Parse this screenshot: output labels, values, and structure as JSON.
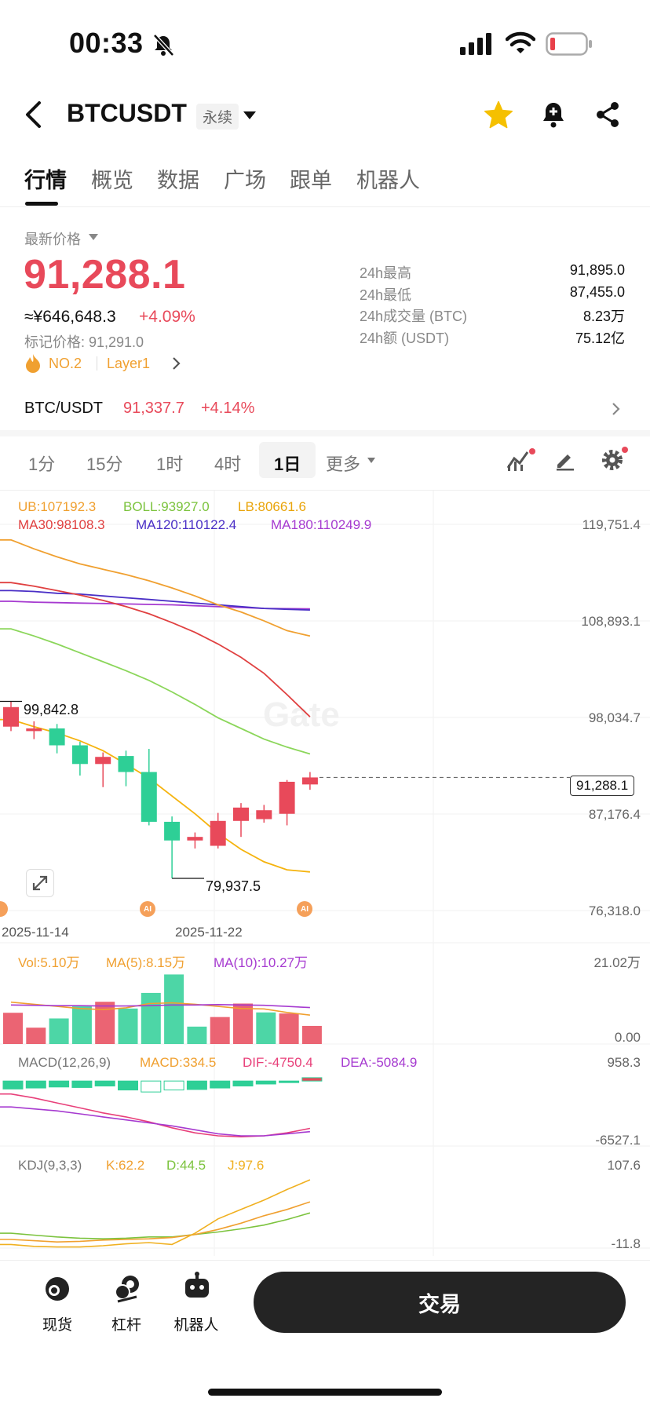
{
  "status_bar": {
    "time": "00:33"
  },
  "header": {
    "symbol": "BTCUSDT",
    "contract_type": "永续"
  },
  "tabs": [
    "行情",
    "概览",
    "数据",
    "广场",
    "跟单",
    "机器人"
  ],
  "price_block": {
    "latest_label": "最新价格",
    "last_price": "91,288.1",
    "cny_equiv": "≈¥646,648.3",
    "change_pct": "+4.09%",
    "mark_price": "标记价格: 91,291.0",
    "rank": "NO.2",
    "sector": "Layer1"
  },
  "stats_24h": [
    {
      "label": "24h最高",
      "value": "91,895.0"
    },
    {
      "label": "24h最低",
      "value": "87,455.0"
    },
    {
      "label": "24h成交量 (BTC)",
      "value": "8.23万"
    },
    {
      "label": "24h额 (USDT)",
      "value": "75.12亿"
    }
  ],
  "spot_ref": {
    "pair": "BTC/USDT",
    "price": "91,337.7",
    "change": "+4.14%"
  },
  "timeframes": [
    "1分",
    "15分",
    "1时",
    "4时",
    "1日",
    "更多"
  ],
  "active_timeframe": "1日",
  "chart_data": {
    "type": "candlestick",
    "main_legend": {
      "ub": "UB:107192.3",
      "boll": "BOLL:93927.0",
      "lb": "LB:80661.6",
      "ma30": "MA30:98108.3",
      "ma120": "MA120:110122.4",
      "ma180": "MA180:110249.9"
    },
    "price_axis": [
      "119,751.4",
      "108,893.1",
      "98,034.7",
      "87,176.4",
      "76,318.0"
    ],
    "price_range": [
      76318.0,
      119751.4
    ],
    "current_price_tag": "91,288.1",
    "annotations": {
      "high": "99,842.8",
      "low": "79,937.5"
    },
    "dates": [
      "2025-11-14",
      "2025-11-22"
    ],
    "candles": [
      {
        "o": 97000,
        "c": 99200,
        "h": 99842.8,
        "l": 96500
      },
      {
        "o": 96500,
        "c": 96800,
        "h": 97600,
        "l": 95600
      },
      {
        "o": 96800,
        "c": 94900,
        "h": 97300,
        "l": 94000
      },
      {
        "o": 94900,
        "c": 92800,
        "h": 95300,
        "l": 91500
      },
      {
        "o": 92800,
        "c": 93600,
        "h": 94100,
        "l": 90200
      },
      {
        "o": 93700,
        "c": 91900,
        "h": 94300,
        "l": 90300
      },
      {
        "o": 91900,
        "c": 86300,
        "h": 94500,
        "l": 85900
      },
      {
        "o": 86300,
        "c": 84200,
        "h": 86900,
        "l": 79937.5
      },
      {
        "o": 84200,
        "c": 84600,
        "h": 85100,
        "l": 83300
      },
      {
        "o": 83600,
        "c": 86400,
        "h": 87300,
        "l": 83300
      },
      {
        "o": 86400,
        "c": 87900,
        "h": 88400,
        "l": 84600
      },
      {
        "o": 86600,
        "c": 87600,
        "h": 88200,
        "l": 86200
      },
      {
        "o": 87200,
        "c": 90800,
        "h": 91000,
        "l": 85900
      },
      {
        "o": 90500,
        "c": 91288.1,
        "h": 91895,
        "l": 89900
      }
    ],
    "lines": {
      "ub": [
        118000,
        117000,
        116100,
        115300,
        114700,
        114100,
        113400,
        112600,
        111700,
        110700,
        109900,
        108900,
        107800,
        107192.3
      ],
      "boll": [
        108000,
        107200,
        106300,
        105300,
        104300,
        103300,
        102200,
        100900,
        99500,
        98000,
        96800,
        95600,
        94700,
        93927.0
      ],
      "lb": [
        97800,
        97000,
        96300,
        95400,
        94300,
        92800,
        91200,
        89200,
        87200,
        85000,
        83200,
        81800,
        80900,
        80661.6
      ],
      "ma30": [
        113200,
        112800,
        112300,
        111800,
        111200,
        110500,
        109700,
        108700,
        107600,
        106300,
        104800,
        103000,
        100600,
        98108.3
      ],
      "ma120": [
        112300,
        112200,
        112000,
        111900,
        111700,
        111500,
        111300,
        111100,
        110900,
        110700,
        110500,
        110300,
        110200,
        110122.4
      ],
      "ma180": [
        111100,
        111000,
        110950,
        110900,
        110850,
        110800,
        110750,
        110700,
        110600,
        110500,
        110400,
        110300,
        110270,
        110249.9
      ]
    },
    "volume": {
      "legend": {
        "vol": "Vol:5.10万",
        "ma5": "MA(5):8.15万",
        "ma10": "MA(10):10.27万"
      },
      "axis": [
        "21.02万",
        "0.00"
      ],
      "bars": [
        {
          "v": 8.8,
          "up": false
        },
        {
          "v": 4.6,
          "up": false
        },
        {
          "v": 7.2,
          "up": true
        },
        {
          "v": 10.6,
          "up": true
        },
        {
          "v": 11.9,
          "up": false
        },
        {
          "v": 10.0,
          "up": true
        },
        {
          "v": 14.4,
          "up": true
        },
        {
          "v": 19.6,
          "up": true
        },
        {
          "v": 4.9,
          "up": true
        },
        {
          "v": 7.6,
          "up": false
        },
        {
          "v": 11.4,
          "up": false
        },
        {
          "v": 8.9,
          "up": true
        },
        {
          "v": 8.6,
          "up": false
        },
        {
          "v": 5.1,
          "up": false
        }
      ],
      "ma5": [
        11.8,
        11.2,
        10.6,
        10.0,
        9.7,
        10.2,
        11.4,
        11.6,
        11.2,
        10.6,
        10.0,
        9.9,
        8.9,
        8.15
      ],
      "ma10": [
        11.0,
        10.9,
        10.8,
        10.8,
        10.7,
        10.7,
        10.8,
        11.0,
        11.0,
        11.1,
        11.0,
        10.9,
        10.6,
        10.27
      ]
    },
    "macd": {
      "legend": {
        "name": "MACD(12,26,9)",
        "macd": "MACD:334.5",
        "dif": "DIF:-4750.4",
        "dea": "DEA:-5084.9"
      },
      "axis": [
        "958.3",
        "-6527.1"
      ],
      "hist": [
        -800,
        -700,
        -600,
        -650,
        -500,
        -900,
        -1100,
        -900,
        -850,
        -700,
        -500,
        -300,
        -100,
        334.5
      ],
      "dif": [
        -1300,
        -1700,
        -2200,
        -2700,
        -3200,
        -3600,
        -4100,
        -4700,
        -5200,
        -5500,
        -5600,
        -5500,
        -5200,
        -4750.4
      ],
      "dea": [
        -2600,
        -2800,
        -3000,
        -3300,
        -3600,
        -3900,
        -4200,
        -4500,
        -4900,
        -5300,
        -5500,
        -5500,
        -5300,
        -5084.9
      ]
    },
    "kdj": {
      "legend": {
        "name": "KDJ(9,3,3)",
        "k": "K:62.2",
        "d": "D:44.5",
        "j": "J:97.6"
      },
      "axis": [
        "107.6",
        "-11.8"
      ],
      "k": [
        2,
        0,
        -2,
        -1,
        1,
        2,
        3,
        5,
        10,
        18,
        28,
        40,
        50,
        62.2
      ],
      "d": [
        12,
        9,
        6,
        4,
        3,
        4,
        6,
        6,
        10,
        14,
        19,
        25,
        34,
        44.5
      ],
      "j": [
        -6,
        -9,
        -10,
        -10,
        -8,
        -5,
        -3,
        -6,
        12,
        35,
        50,
        65,
        82,
        97.6
      ]
    }
  },
  "bottom_nav": [
    "现货",
    "杠杆",
    "机器人"
  ],
  "trade_button": "交易",
  "colors": {
    "up": "#e8495a",
    "down": "#2ecf96",
    "ub": "#f0a030",
    "boll": "#8bd65a",
    "lb": "#f5b30d",
    "ma30": "#e04040",
    "ma120": "#4a2fc6",
    "ma180": "#a63ad0"
  }
}
